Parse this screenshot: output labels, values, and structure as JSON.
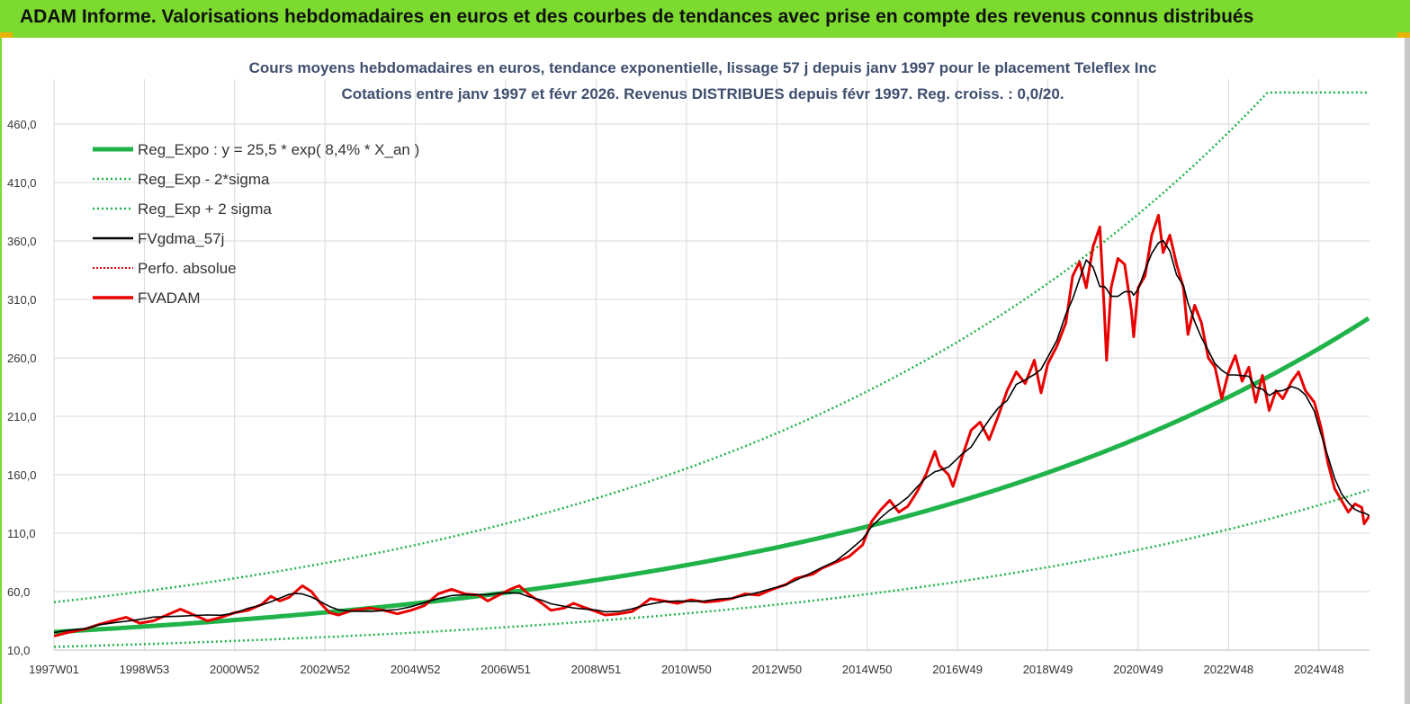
{
  "banner": {
    "title": "ADAM Informe. Valorisations hebdomadaires en euros et des courbes de tendances avec prise en compte des revenus connus distribués"
  },
  "colors": {
    "banner": "#7cdb2e",
    "reg_expo": "#1fb34a",
    "sigma": "#1fb34a",
    "fvgdma": "#000000",
    "perfo": "#e00000",
    "fvadam": "#e80000"
  },
  "chart_data": {
    "type": "line",
    "title_line1": "Cours moyens hebdomadaires en euros, tendance exponentielle, lissage 57 j depuis janv 1997 pour le placement Teleflex Inc",
    "title_line2": "Cotations entre janv 1997 et févr 2026. Revenus DISTRIBUES depuis févr 1997. Reg. croiss. : 0,0/20.",
    "x_range": [
      1997.0,
      2026.12
    ],
    "x_ticks": [
      {
        "label": "1997W01",
        "x": 1997.0
      },
      {
        "label": "1998W53",
        "x": 1999.0
      },
      {
        "label": "2000W52",
        "x": 2001.0
      },
      {
        "label": "2002W52",
        "x": 2003.0
      },
      {
        "label": "2004W52",
        "x": 2005.0
      },
      {
        "label": "2006W51",
        "x": 2007.0
      },
      {
        "label": "2008W51",
        "x": 2009.0
      },
      {
        "label": "2010W50",
        "x": 2011.0
      },
      {
        "label": "2012W50",
        "x": 2013.0
      },
      {
        "label": "2014W50",
        "x": 2015.0
      },
      {
        "label": "2016W49",
        "x": 2017.0
      },
      {
        "label": "2018W49",
        "x": 2019.0
      },
      {
        "label": "2020W49",
        "x": 2021.0
      },
      {
        "label": "2022W48",
        "x": 2023.0
      },
      {
        "label": "2024W48",
        "x": 2025.0
      }
    ],
    "ylim": [
      10,
      460
    ],
    "y_ticks": [
      "460,0",
      "410,0",
      "360,0",
      "310,0",
      "260,0",
      "210,0",
      "160,0",
      "110,0",
      "60,0",
      "10,0"
    ],
    "y_tick_values": [
      460,
      410,
      360,
      310,
      260,
      210,
      160,
      110,
      60,
      10
    ],
    "grid": true,
    "legend_position": "top-left",
    "legend": [
      {
        "key": "reg_expo",
        "label": "Reg_Expo : y = 25,5 * exp( 8,4% *  X_an )",
        "style": "thick"
      },
      {
        "key": "reg_minus",
        "label": "Reg_Exp - 2*sigma",
        "style": "dotted-green"
      },
      {
        "key": "reg_plus",
        "label": "Reg_Exp + 2 sigma",
        "style": "dotted-green"
      },
      {
        "key": "fvgdma",
        "label": "FVgdma_57j",
        "style": "solid-black"
      },
      {
        "key": "perfo",
        "label": "Perfo. absolue",
        "style": "dotted-red"
      },
      {
        "key": "fvadam",
        "label": "FVADAM",
        "style": "solid-red"
      }
    ],
    "regression": {
      "a": 25.5,
      "rate_pct": 8.4,
      "sigma_factor_plus": 2.0,
      "sigma_factor_minus": 0.5,
      "cap": 487
    },
    "series_fvadam": [
      [
        1997.0,
        22
      ],
      [
        1997.3,
        25
      ],
      [
        1997.7,
        28
      ],
      [
        1998.0,
        32
      ],
      [
        1998.3,
        35
      ],
      [
        1998.6,
        38
      ],
      [
        1998.9,
        33
      ],
      [
        1999.2,
        35
      ],
      [
        1999.5,
        40
      ],
      [
        1999.8,
        45
      ],
      [
        2000.1,
        40
      ],
      [
        2000.4,
        35
      ],
      [
        2000.7,
        38
      ],
      [
        2001.0,
        42
      ],
      [
        2001.3,
        44
      ],
      [
        2001.6,
        49
      ],
      [
        2001.8,
        56
      ],
      [
        2002.0,
        52
      ],
      [
        2002.2,
        55
      ],
      [
        2002.35,
        60
      ],
      [
        2002.5,
        65
      ],
      [
        2002.7,
        60
      ],
      [
        2002.9,
        50
      ],
      [
        2003.1,
        42
      ],
      [
        2003.3,
        40
      ],
      [
        2003.6,
        44
      ],
      [
        2004.0,
        46
      ],
      [
        2004.3,
        44
      ],
      [
        2004.6,
        41
      ],
      [
        2004.9,
        44
      ],
      [
        2005.2,
        48
      ],
      [
        2005.5,
        58
      ],
      [
        2005.8,
        62
      ],
      [
        2006.1,
        58
      ],
      [
        2006.4,
        57
      ],
      [
        2006.6,
        52
      ],
      [
        2006.9,
        58
      ],
      [
        2007.1,
        62
      ],
      [
        2007.3,
        65
      ],
      [
        2007.5,
        58
      ],
      [
        2007.8,
        50
      ],
      [
        2008.0,
        44
      ],
      [
        2008.3,
        46
      ],
      [
        2008.5,
        50
      ],
      [
        2008.7,
        47
      ],
      [
        2009.0,
        43
      ],
      [
        2009.2,
        40
      ],
      [
        2009.5,
        41
      ],
      [
        2009.8,
        43
      ],
      [
        2010.0,
        48
      ],
      [
        2010.2,
        54
      ],
      [
        2010.5,
        52
      ],
      [
        2010.8,
        50
      ],
      [
        2011.1,
        53
      ],
      [
        2011.4,
        51
      ],
      [
        2011.7,
        52
      ],
      [
        2012.0,
        54
      ],
      [
        2012.3,
        58
      ],
      [
        2012.6,
        57
      ],
      [
        2012.9,
        62
      ],
      [
        2013.2,
        66
      ],
      [
        2013.4,
        71
      ],
      [
        2013.6,
        73
      ],
      [
        2013.8,
        75
      ],
      [
        2014.0,
        80
      ],
      [
        2014.3,
        85
      ],
      [
        2014.6,
        90
      ],
      [
        2014.9,
        100
      ],
      [
        2015.1,
        120
      ],
      [
        2015.3,
        130
      ],
      [
        2015.5,
        138
      ],
      [
        2015.7,
        128
      ],
      [
        2015.9,
        133
      ],
      [
        2016.1,
        145
      ],
      [
        2016.3,
        160
      ],
      [
        2016.5,
        180
      ],
      [
        2016.6,
        168
      ],
      [
        2016.8,
        160
      ],
      [
        2016.9,
        150
      ],
      [
        2017.1,
        175
      ],
      [
        2017.3,
        198
      ],
      [
        2017.5,
        205
      ],
      [
        2017.7,
        190
      ],
      [
        2017.9,
        210
      ],
      [
        2018.1,
        232
      ],
      [
        2018.3,
        248
      ],
      [
        2018.5,
        238
      ],
      [
        2018.7,
        258
      ],
      [
        2018.85,
        230
      ],
      [
        2019.0,
        255
      ],
      [
        2019.2,
        270
      ],
      [
        2019.4,
        290
      ],
      [
        2019.55,
        330
      ],
      [
        2019.7,
        342
      ],
      [
        2019.85,
        320
      ],
      [
        2020.0,
        355
      ],
      [
        2020.15,
        372
      ],
      [
        2020.25,
        300
      ],
      [
        2020.3,
        258
      ],
      [
        2020.4,
        320
      ],
      [
        2020.55,
        345
      ],
      [
        2020.7,
        340
      ],
      [
        2020.85,
        300
      ],
      [
        2020.9,
        278
      ],
      [
        2021.0,
        320
      ],
      [
        2021.15,
        330
      ],
      [
        2021.3,
        365
      ],
      [
        2021.45,
        382
      ],
      [
        2021.55,
        350
      ],
      [
        2021.7,
        365
      ],
      [
        2021.85,
        340
      ],
      [
        2022.0,
        320
      ],
      [
        2022.1,
        280
      ],
      [
        2022.25,
        305
      ],
      [
        2022.4,
        290
      ],
      [
        2022.55,
        260
      ],
      [
        2022.7,
        252
      ],
      [
        2022.85,
        225
      ],
      [
        2023.0,
        248
      ],
      [
        2023.15,
        262
      ],
      [
        2023.3,
        240
      ],
      [
        2023.45,
        252
      ],
      [
        2023.6,
        222
      ],
      [
        2023.75,
        245
      ],
      [
        2023.9,
        215
      ],
      [
        2024.05,
        232
      ],
      [
        2024.2,
        225
      ],
      [
        2024.4,
        240
      ],
      [
        2024.55,
        248
      ],
      [
        2024.7,
        232
      ],
      [
        2024.9,
        222
      ],
      [
        2025.05,
        200
      ],
      [
        2025.2,
        170
      ],
      [
        2025.35,
        148
      ],
      [
        2025.5,
        138
      ],
      [
        2025.65,
        128
      ],
      [
        2025.8,
        135
      ],
      [
        2025.95,
        132
      ],
      [
        2026.0,
        118
      ],
      [
        2026.12,
        125
      ]
    ]
  }
}
